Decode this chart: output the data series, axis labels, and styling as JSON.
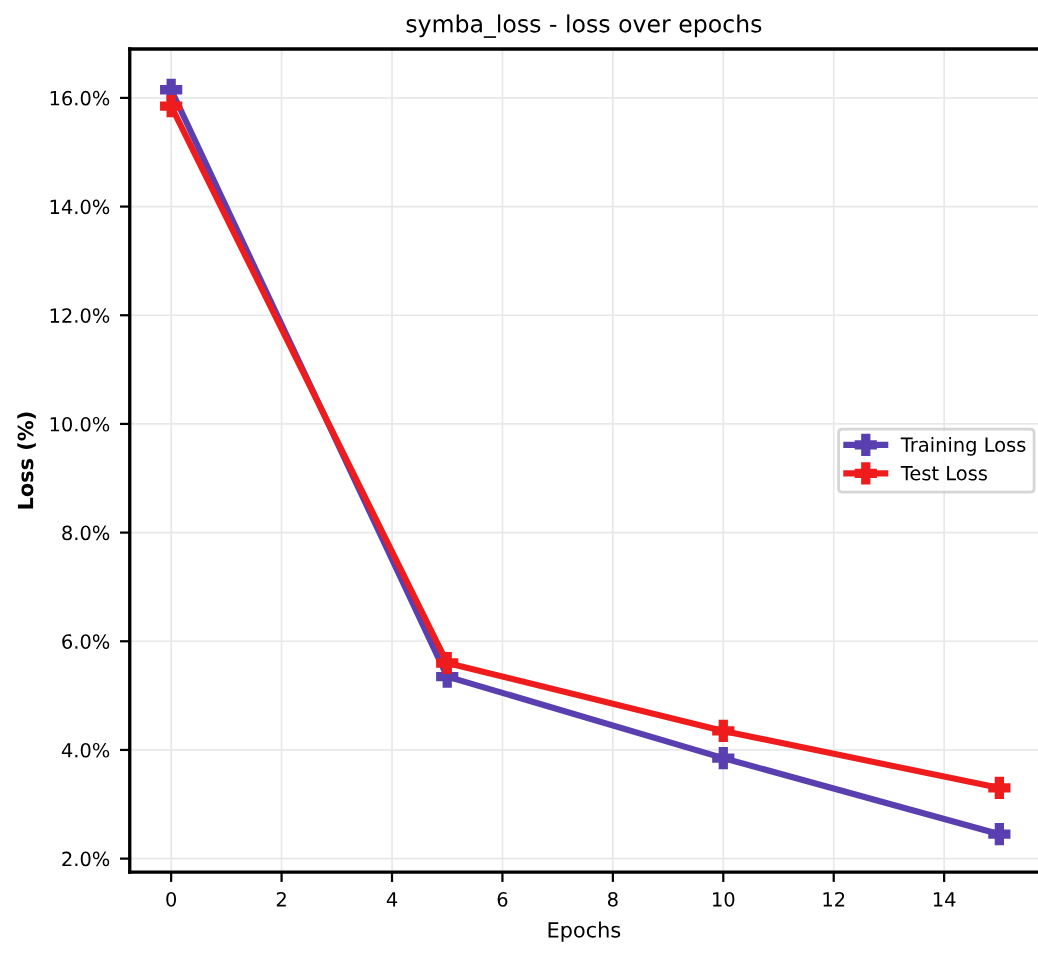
{
  "chart_data": {
    "type": "line",
    "title": "symba_loss - loss over epochs",
    "xlabel": "Epochs",
    "ylabel": "Loss (%)",
    "x": [
      0,
      5,
      10,
      15
    ],
    "series": [
      {
        "name": "Training Loss",
        "color": "#5a3fb0",
        "values": [
          16.15,
          5.35,
          3.85,
          2.45
        ]
      },
      {
        "name": "Test Loss",
        "color": "#ee1c1c",
        "values": [
          15.85,
          5.6,
          4.35,
          3.3
        ]
      }
    ],
    "xlim": [
      -0.75,
      15.7
    ],
    "ylim": [
      1.75,
      16.9
    ],
    "xticks": [
      0,
      2,
      4,
      6,
      8,
      10,
      12,
      14
    ],
    "yticks": [
      {
        "value": 2,
        "label": "2.0%"
      },
      {
        "value": 4,
        "label": "4.0%"
      },
      {
        "value": 6,
        "label": "6.0%"
      },
      {
        "value": 8,
        "label": "8.0%"
      },
      {
        "value": 10,
        "label": "10.0%"
      },
      {
        "value": 12,
        "label": "12.0%"
      },
      {
        "value": 14,
        "label": "14.0%"
      },
      {
        "value": 16,
        "label": "16.0%"
      }
    ],
    "grid": true,
    "legend": "right",
    "marker": "cross",
    "line_style": "solid"
  }
}
